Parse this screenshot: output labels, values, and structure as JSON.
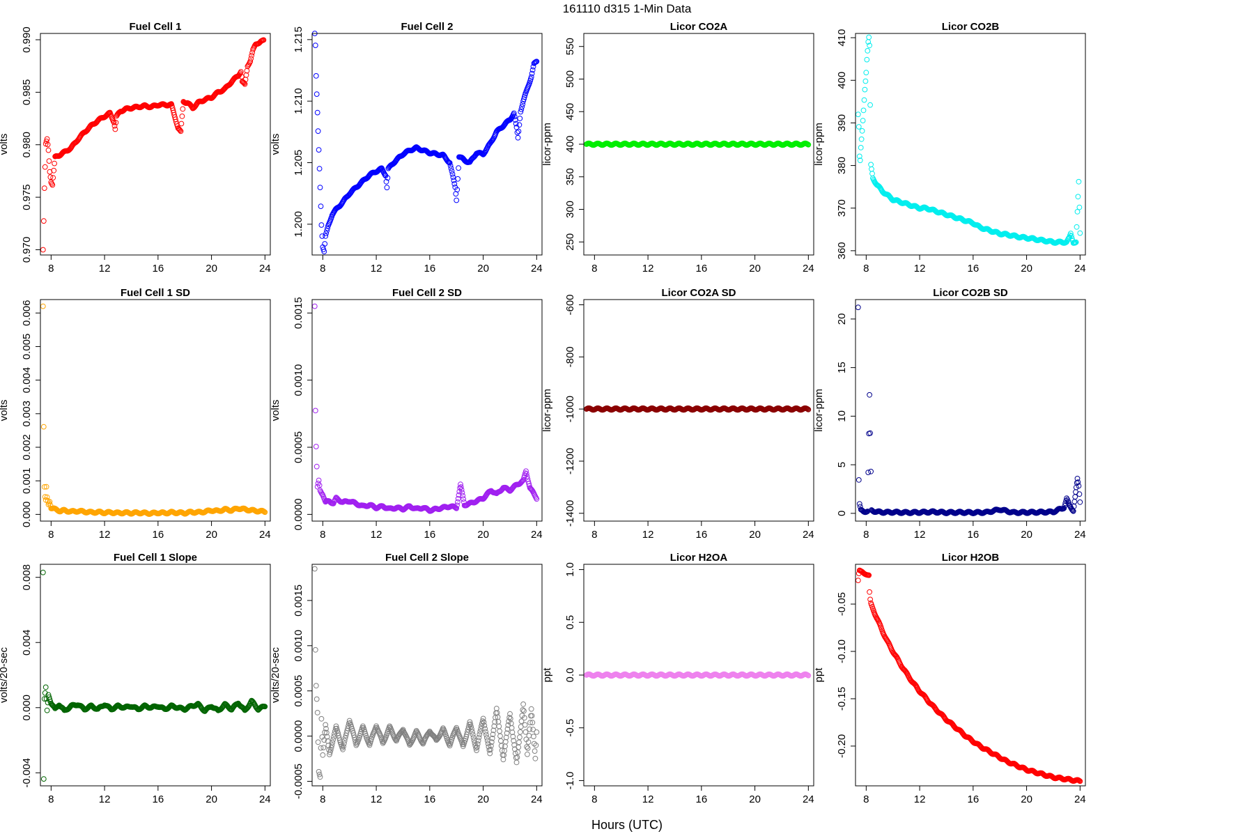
{
  "figure": {
    "title": "161110    d315    1-Min Data",
    "xlabel": "Hours (UTC)"
  },
  "chart_data": [
    {
      "type": "scatter",
      "title": "Fuel Cell 1",
      "ylabel": "volts",
      "color": "#ff0000",
      "xlim": [
        7.2,
        24.4
      ],
      "ylim": [
        0.9695,
        0.9906
      ],
      "yticks": [
        0.97,
        0.975,
        0.98,
        0.985,
        0.99
      ],
      "yticklabels": [
        "0.970",
        "0.975",
        "0.980",
        "0.985",
        "0.990"
      ],
      "xticks": [
        8,
        12,
        16,
        20,
        24
      ],
      "x": [
        7.4,
        7.45,
        7.5,
        7.55,
        7.6,
        7.7,
        7.8,
        7.9,
        8.0,
        8.1,
        8.3,
        8.6,
        9.0,
        9.5,
        10,
        10.5,
        11,
        11.5,
        12,
        12.4,
        12.7,
        12.8,
        12.9,
        13.2,
        13.6,
        14,
        14.5,
        15,
        15.5,
        16,
        16.5,
        17,
        17.3,
        17.5,
        17.7,
        17.9,
        18.2,
        18.6,
        19,
        19.5,
        20,
        20.5,
        21,
        21.5,
        22,
        22.2,
        22.3,
        22.5,
        22.7,
        22.9,
        23.1,
        23.3,
        23.5,
        23.7,
        23.9
      ],
      "y": [
        0.97,
        0.9727,
        0.9758,
        0.9778,
        0.98,
        0.9805,
        0.9795,
        0.9775,
        0.9765,
        0.9762,
        0.9788,
        0.979,
        0.9793,
        0.9797,
        0.9805,
        0.9812,
        0.9818,
        0.9823,
        0.9827,
        0.983,
        0.9822,
        0.9815,
        0.9827,
        0.9832,
        0.9834,
        0.9835,
        0.9836,
        0.9837,
        0.9836,
        0.9838,
        0.9838,
        0.9838,
        0.9825,
        0.9816,
        0.9812,
        0.9841,
        0.984,
        0.9835,
        0.984,
        0.9843,
        0.9845,
        0.985,
        0.9853,
        0.986,
        0.9866,
        0.987,
        0.986,
        0.9857,
        0.9875,
        0.988,
        0.989,
        0.9895,
        0.9897,
        0.9899,
        0.9899
      ]
    },
    {
      "type": "scatter",
      "title": "Fuel Cell 2",
      "ylabel": "volts",
      "color": "#0000ff",
      "xlim": [
        7.2,
        24.4
      ],
      "ylim": [
        1.1975,
        1.2155
      ],
      "yticks": [
        1.2,
        1.205,
        1.21,
        1.215
      ],
      "yticklabels": [
        "1.200",
        "1.205",
        "1.210",
        "1.215"
      ],
      "xticks": [
        8,
        12,
        16,
        20,
        24
      ],
      "x": [
        7.4,
        7.45,
        7.5,
        7.6,
        7.7,
        7.8,
        7.9,
        8.0,
        8.1,
        8.2,
        8.4,
        8.7,
        9.0,
        9.5,
        10,
        10.5,
        11,
        11.5,
        12,
        12.4,
        12.7,
        12.8,
        12.9,
        13.3,
        13.7,
        14,
        14.5,
        15,
        15.5,
        16,
        16.5,
        17,
        17.5,
        17.7,
        17.9,
        18.0,
        18.2,
        18.6,
        19,
        19.5,
        20,
        20.5,
        21,
        21.5,
        22,
        22.3,
        22.5,
        22.6,
        22.8,
        23.0,
        23.3,
        23.6,
        23.8,
        24.0
      ],
      "y": [
        1.2155,
        1.2145,
        1.212,
        1.209,
        1.206,
        1.203,
        1.2,
        1.1982,
        1.1978,
        1.199,
        1.1998,
        1.2008,
        1.2012,
        1.2018,
        1.2025,
        1.203,
        1.2035,
        1.204,
        1.2043,
        1.2045,
        1.204,
        1.203,
        1.2045,
        1.205,
        1.2054,
        1.2057,
        1.206,
        1.2062,
        1.206,
        1.2058,
        1.2057,
        1.2056,
        1.205,
        1.204,
        1.203,
        1.202,
        1.2055,
        1.2052,
        1.205,
        1.2058,
        1.2057,
        1.2065,
        1.2075,
        1.208,
        1.2085,
        1.209,
        1.2078,
        1.207,
        1.2092,
        1.21,
        1.211,
        1.212,
        1.213,
        1.2132
      ]
    },
    {
      "type": "scatter",
      "title": "Licor CO2A",
      "ylabel": "licor-ppm",
      "color": "#00ee00",
      "xlim": [
        7.2,
        24.4
      ],
      "ylim": [
        230,
        570
      ],
      "yticks": [
        250,
        300,
        350,
        400,
        450,
        500,
        550
      ],
      "yticklabels": [
        "250",
        "300",
        "350",
        "400",
        "450",
        "500",
        "550"
      ],
      "xticks": [
        8,
        12,
        16,
        20,
        24
      ],
      "x": [
        7.4,
        8,
        9,
        10,
        11,
        12,
        13,
        14,
        15,
        16,
        17,
        18,
        19,
        20,
        21,
        22,
        23,
        24
      ],
      "y": [
        400,
        400,
        400,
        400,
        400,
        400,
        400,
        400,
        400,
        400,
        400,
        400,
        400,
        400,
        400,
        400,
        400,
        400
      ]
    },
    {
      "type": "scatter",
      "title": "Licor CO2B",
      "ylabel": "licor-ppm",
      "color": "#00eeee",
      "xlim": [
        7.2,
        24.4
      ],
      "ylim": [
        359,
        411
      ],
      "yticks": [
        360,
        370,
        380,
        390,
        400,
        410
      ],
      "yticklabels": [
        "360",
        "370",
        "380",
        "390",
        "400",
        "410"
      ],
      "xticks": [
        8,
        12,
        16,
        20,
        24
      ],
      "x": [
        7.4,
        7.45,
        7.5,
        7.55,
        7.6,
        7.7,
        7.8,
        7.9,
        8.0,
        8.05,
        8.1,
        8.15,
        8.2,
        8.25,
        8.35,
        8.5,
        8.8,
        9.2,
        9.6,
        10,
        10.5,
        11,
        11.5,
        12,
        12.5,
        13,
        13.5,
        14,
        14.5,
        15,
        15.5,
        16,
        16.5,
        17,
        17.5,
        18,
        18.5,
        19,
        19.5,
        20,
        20.5,
        21,
        21.5,
        22,
        22.5,
        23,
        23.2,
        23.3,
        23.5,
        23.7,
        23.9,
        24.0
      ],
      "y": [
        392,
        389,
        382,
        381,
        384,
        388,
        393,
        398,
        402,
        405,
        407,
        409,
        410,
        408,
        380,
        377,
        375.5,
        374,
        373,
        372,
        371.5,
        371,
        370.5,
        370,
        370,
        369.5,
        369,
        368.5,
        368,
        367.5,
        367,
        366.5,
        365.5,
        365,
        364.5,
        364,
        363.8,
        363.5,
        363.2,
        363,
        362.8,
        362.5,
        362.3,
        362,
        362,
        362,
        363,
        364,
        362,
        362,
        376,
        364
      ]
    },
    {
      "type": "scatter",
      "title": "Fuel Cell 1 SD",
      "ylabel": "volts",
      "color": "#ffa500",
      "xlim": [
        7.2,
        24.4
      ],
      "ylim": [
        -0.0002,
        0.0064
      ],
      "yticks": [
        0,
        0.001,
        0.002,
        0.003,
        0.004,
        0.005,
        0.006
      ],
      "yticklabels": [
        "0.000",
        "0.001",
        "0.002",
        "0.003",
        "0.004",
        "0.005",
        "0.006"
      ],
      "xticks": [
        8,
        12,
        16,
        20,
        24
      ],
      "x": [
        7.4,
        7.45,
        7.5,
        7.55,
        7.6,
        7.65,
        7.7,
        7.8,
        7.9,
        8,
        8.3,
        8.7,
        9,
        9.5,
        10,
        10.5,
        11,
        11.5,
        12,
        12.5,
        13,
        13.5,
        14,
        14.5,
        15,
        15.5,
        16,
        16.5,
        17,
        17.5,
        18,
        18.5,
        19,
        19.5,
        20,
        20.5,
        21,
        21.5,
        22,
        22.5,
        23,
        23.5,
        24
      ],
      "y": [
        0.0062,
        0.0026,
        0.0008,
        0.0005,
        0.0004,
        0.0008,
        0.0005,
        0.0003,
        0.0004,
        0.0002,
        0.00015,
        0.0001,
        0.00012,
        8e-05,
        0.0001,
        8e-05,
        6e-05,
        7e-05,
        5e-05,
        6e-05,
        4e-05,
        5e-05,
        4e-05,
        5e-05,
        4e-05,
        3e-05,
        5e-05,
        4e-05,
        6e-05,
        5e-05,
        4e-05,
        7e-05,
        6e-05,
        8e-05,
        0.00012,
        0.0001,
        0.00015,
        0.00012,
        0.00018,
        0.00015,
        0.00012,
        0.0001,
        8e-05
      ]
    },
    {
      "type": "scatter",
      "title": "Fuel Cell 2 SD",
      "ylabel": "volts",
      "color": "#a020f0",
      "xlim": [
        7.2,
        24.4
      ],
      "ylim": [
        -5e-05,
        0.0016
      ],
      "yticks": [
        0,
        0.0005,
        0.001,
        0.0015
      ],
      "yticklabels": [
        "0.0000",
        "0.0005",
        "0.0010",
        "0.0015"
      ],
      "xticks": [
        8,
        12,
        16,
        20,
        24
      ],
      "x": [
        7.4,
        7.45,
        7.5,
        7.55,
        7.6,
        7.7,
        7.8,
        8,
        8.2,
        8.5,
        8.8,
        9,
        9.5,
        10,
        10.5,
        11,
        11.5,
        12,
        12.5,
        13,
        13.5,
        14,
        14.5,
        15,
        15.5,
        16,
        16.5,
        17,
        17.5,
        18,
        18.3,
        18.6,
        19,
        19.5,
        20,
        20.3,
        20.6,
        21,
        21.5,
        22,
        22.5,
        23,
        23.2,
        23.5,
        23.8,
        24
      ],
      "y": [
        0.00155,
        0.00077,
        0.0005,
        0.00035,
        0.0002,
        0.00025,
        0.00018,
        0.00015,
        9e-05,
        0.0001,
        8e-05,
        0.00012,
        9e-05,
        0.0001,
        8e-05,
        6e-05,
        7e-05,
        5e-05,
        6e-05,
        4e-05,
        5e-05,
        4e-05,
        6e-05,
        4e-05,
        5e-05,
        3e-05,
        4e-05,
        5e-05,
        6e-05,
        5e-05,
        0.00022,
        7e-05,
        8e-05,
        0.0001,
        0.00012,
        0.00015,
        0.00018,
        0.00015,
        0.0002,
        0.00018,
        0.00022,
        0.00025,
        0.00032,
        0.0002,
        0.00015,
        0.00012
      ]
    },
    {
      "type": "scatter",
      "title": "Licor CO2A SD",
      "ylabel": "licor-ppm",
      "color": "#8b0000",
      "xlim": [
        7.2,
        24.4
      ],
      "ylim": [
        -1430,
        -580
      ],
      "yticks": [
        -1400,
        -1200,
        -1000,
        -800,
        -600
      ],
      "yticklabels": [
        "-1400",
        "-1200",
        "-1000",
        "-800",
        "-600"
      ],
      "xticks": [
        8,
        12,
        16,
        20,
        24
      ],
      "x": [
        7.4,
        8,
        9,
        10,
        11,
        12,
        13,
        14,
        15,
        16,
        17,
        18,
        19,
        20,
        21,
        22,
        23,
        24
      ],
      "y": [
        -1000,
        -1000,
        -1000,
        -1000,
        -1000,
        -1000,
        -1000,
        -1000,
        -1000,
        -1000,
        -1000,
        -1000,
        -1000,
        -1000,
        -1000,
        -1000,
        -1000,
        -1000
      ]
    },
    {
      "type": "scatter",
      "title": "Licor CO2B SD",
      "ylabel": "licor-ppm",
      "color": "#00008b",
      "xlim": [
        7.2,
        24.4
      ],
      "ylim": [
        -0.8,
        22
      ],
      "yticks": [
        0,
        5,
        10,
        15,
        20
      ],
      "yticklabels": [
        "0",
        "5",
        "10",
        "15",
        "20"
      ],
      "xticks": [
        8,
        12,
        16,
        20,
        24
      ],
      "x": [
        7.4,
        7.45,
        7.5,
        7.6,
        7.8,
        8.1,
        8.25,
        8.4,
        8.8,
        9.5,
        10,
        11,
        12,
        13,
        14,
        15,
        16,
        17,
        18,
        19,
        20,
        21,
        22,
        22.8,
        23.0,
        23.2,
        23.5,
        23.8,
        23.9,
        24.0
      ],
      "y": [
        21.2,
        3.4,
        0.9,
        0.3,
        0.2,
        0.2,
        12.1,
        0.3,
        0.15,
        0.1,
        0.12,
        0.08,
        0.1,
        0.15,
        0.08,
        0.1,
        0.08,
        0.1,
        0.4,
        0.08,
        0.1,
        0.12,
        0.15,
        0.6,
        1.5,
        0.8,
        0.3,
        3.5,
        2.8,
        1.2
      ]
    },
    {
      "type": "scatter",
      "title": "Fuel Cell 1 Slope",
      "ylabel": "volts/20-sec",
      "color": "#006400",
      "xlim": [
        7.2,
        24.4
      ],
      "ylim": [
        -0.0048,
        0.0088
      ],
      "yticks": [
        -0.004,
        0,
        0.004,
        0.008
      ],
      "yticklabels": [
        "-0.004",
        "0.000",
        "0.004",
        "0.008"
      ],
      "xticks": [
        8,
        12,
        16,
        20,
        24
      ],
      "x": [
        7.4,
        7.45,
        7.5,
        7.6,
        7.7,
        7.8,
        8,
        8.3,
        8.6,
        9,
        9.5,
        10,
        10.5,
        11,
        11.5,
        12,
        12.5,
        13,
        13.5,
        14,
        14.5,
        15,
        15.5,
        16,
        16.5,
        17,
        17.5,
        18,
        18.5,
        19,
        19.5,
        20,
        20.5,
        21,
        21.5,
        22,
        22.5,
        23,
        23.5,
        24
      ],
      "y": [
        0.0083,
        -0.0044,
        0.0005,
        0.0012,
        -0.0002,
        0.0008,
        0.0003,
        -0.0001,
        0.0002,
        -0.0002,
        0.0001,
        0.0002,
        -0.0001,
        0.0001,
        -0.0001,
        0.0002,
        -0.0001,
        0.0001,
        0.0,
        0.0001,
        -0.0001,
        0.0001,
        0.0,
        0.0001,
        -0.0001,
        0.0001,
        0.0,
        -0.0001,
        0.0001,
        0.0002,
        -0.0002,
        0.0001,
        -0.0002,
        0.0002,
        -0.0001,
        0.0003,
        -0.0002,
        0.0004,
        -0.0001,
        0.0001
      ]
    },
    {
      "type": "scatter",
      "title": "Fuel Cell 2 Slope",
      "ylabel": "volts/20-sec",
      "color": "#808080",
      "xlim": [
        7.2,
        24.4
      ],
      "ylim": [
        -0.00055,
        0.0019
      ],
      "yticks": [
        -0.0005,
        0,
        0.0005,
        0.001,
        0.0015
      ],
      "yticklabels": [
        "-0.0005",
        "0.0000",
        "0.0005",
        "0.0010",
        "0.0015"
      ],
      "xticks": [
        8,
        12,
        16,
        20,
        24
      ],
      "x": [
        7.4,
        7.45,
        7.5,
        7.55,
        7.6,
        7.7,
        7.8,
        7.9,
        8,
        8.2,
        8.5,
        9,
        9.5,
        10,
        10.5,
        11,
        11.5,
        12,
        12.5,
        13,
        13.5,
        14,
        14.5,
        15,
        15.5,
        16,
        16.5,
        17,
        17.5,
        18,
        18.5,
        19,
        19.5,
        20,
        20.5,
        21,
        21.5,
        22,
        22.5,
        23,
        23.3,
        23.6,
        23.9,
        24
      ],
      "y": [
        0.00185,
        0.00095,
        0.00055,
        0.0004,
        0.00025,
        -0.0004,
        -0.00045,
        0.0002,
        -0.0002,
        0.00012,
        -0.0002,
        0.0001,
        -0.00015,
        0.00018,
        -0.0001,
        0.0001,
        -0.0001,
        0.00012,
        -8e-05,
        0.0001,
        -5e-05,
        8e-05,
        -0.0001,
        5e-05,
        -8e-05,
        6e-05,
        -5e-05,
        8e-05,
        -0.0001,
        0.0001,
        -0.00012,
        0.00015,
        -0.00015,
        0.0002,
        -0.0002,
        0.0003,
        -0.00025,
        0.00025,
        -0.0003,
        0.00035,
        -0.0002,
        0.0003,
        -0.00025,
        5e-05
      ]
    },
    {
      "type": "scatter",
      "title": "Licor H2OA",
      "ylabel": "ppt",
      "color": "#ee82ee",
      "xlim": [
        7.2,
        24.4
      ],
      "ylim": [
        -1.05,
        1.05
      ],
      "yticks": [
        -1,
        -0.5,
        0,
        0.5,
        1
      ],
      "yticklabels": [
        "-1.0",
        "-0.5",
        "0.0",
        "0.5",
        "1.0"
      ],
      "xticks": [
        8,
        12,
        16,
        20,
        24
      ],
      "x": [
        7.4,
        8,
        9,
        10,
        11,
        12,
        13,
        14,
        15,
        16,
        17,
        18,
        19,
        20,
        21,
        22,
        23,
        24
      ],
      "y": [
        0,
        0,
        0,
        0,
        0,
        0,
        0,
        0,
        0,
        0,
        0,
        0,
        0,
        0,
        0,
        0,
        0,
        0
      ]
    },
    {
      "type": "scatter",
      "title": "Licor H2OB",
      "ylabel": "ppt",
      "color": "#ff0000",
      "xlim": [
        7.2,
        24.4
      ],
      "ylim": [
        -0.242,
        -0.008
      ],
      "yticks": [
        -0.2,
        -0.15,
        -0.1,
        -0.05
      ],
      "yticklabels": [
        "-0.20",
        "-0.15",
        "-0.10",
        "-0.05"
      ],
      "xticks": [
        8,
        12,
        16,
        20,
        24
      ],
      "x": [
        7.4,
        7.45,
        7.5,
        7.6,
        7.8,
        8.0,
        8.1,
        8.2,
        8.25,
        8.3,
        8.35,
        8.5,
        8.8,
        9.2,
        9.6,
        10,
        10.5,
        11,
        11.5,
        12,
        12.5,
        13,
        13.5,
        14,
        14.5,
        15,
        15.5,
        16,
        16.5,
        17,
        17.5,
        18,
        18.5,
        19,
        19.5,
        20,
        20.5,
        21,
        21.5,
        22,
        22.5,
        23,
        23.5,
        24
      ],
      "y": [
        -0.025,
        -0.018,
        -0.015,
        -0.016,
        -0.017,
        -0.018,
        -0.019,
        -0.02,
        -0.038,
        -0.046,
        -0.05,
        -0.055,
        -0.065,
        -0.078,
        -0.09,
        -0.1,
        -0.112,
        -0.123,
        -0.133,
        -0.142,
        -0.15,
        -0.158,
        -0.165,
        -0.172,
        -0.178,
        -0.184,
        -0.19,
        -0.195,
        -0.2,
        -0.204,
        -0.208,
        -0.212,
        -0.216,
        -0.219,
        -0.222,
        -0.225,
        -0.227,
        -0.229,
        -0.231,
        -0.233,
        -0.234,
        -0.235,
        -0.236,
        -0.237
      ]
    }
  ]
}
